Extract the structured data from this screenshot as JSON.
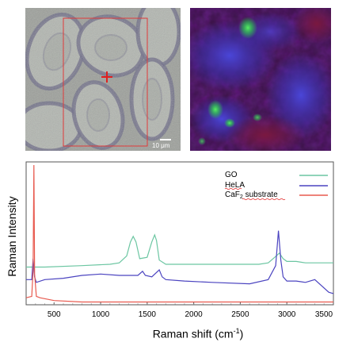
{
  "micrograph": {
    "scale_bar_label": "10 μm",
    "colors": {
      "background": "#9c9f9a",
      "roi": "#e03a3a",
      "crosshair": "#e02020"
    }
  },
  "raman_map": {
    "colors": {
      "background": "#3a1246",
      "go_signal": "#3dd35a",
      "cell_signal": "#4b3fb8"
    }
  },
  "chart_data": {
    "type": "line",
    "xlabel": "Raman shift (cm-1)",
    "ylabel": "Raman Intensity",
    "xlim": [
      200,
      3500
    ],
    "xticks": [
      "500",
      "1000",
      "1500",
      "2000",
      "2500",
      "3000",
      "3500"
    ],
    "legend_position": "top-right",
    "series": [
      {
        "name": "GO",
        "color": "#6cc6a2",
        "x": [
          200,
          400,
          800,
          1100,
          1200,
          1280,
          1320,
          1350,
          1380,
          1420,
          1500,
          1550,
          1580,
          1600,
          1630,
          1700,
          1800,
          2000,
          2400,
          2700,
          2800,
          2870,
          2920,
          2960,
          3000,
          3100,
          3200,
          3300,
          3500
        ],
        "y": [
          0.27,
          0.27,
          0.28,
          0.29,
          0.3,
          0.35,
          0.45,
          0.49,
          0.45,
          0.33,
          0.34,
          0.45,
          0.5,
          0.46,
          0.32,
          0.29,
          0.29,
          0.29,
          0.29,
          0.29,
          0.3,
          0.34,
          0.37,
          0.33,
          0.31,
          0.31,
          0.3,
          0.3,
          0.3
        ]
      },
      {
        "name": "HeLA",
        "color": "#4b44c0",
        "x": [
          200,
          260,
          275,
          290,
          310,
          400,
          600,
          800,
          1000,
          1200,
          1400,
          1450,
          1480,
          1550,
          1630,
          1660,
          1700,
          1900,
          2200,
          2600,
          2800,
          2880,
          2910,
          2935,
          2960,
          3000,
          3100,
          3200,
          3300,
          3450,
          3500
        ],
        "y": [
          0.18,
          0.18,
          0.33,
          0.2,
          0.16,
          0.18,
          0.19,
          0.21,
          0.22,
          0.21,
          0.21,
          0.24,
          0.21,
          0.2,
          0.25,
          0.2,
          0.18,
          0.17,
          0.16,
          0.15,
          0.18,
          0.28,
          0.53,
          0.32,
          0.2,
          0.17,
          0.17,
          0.16,
          0.18,
          0.09,
          0.08
        ]
      },
      {
        "name": "CaF2 substrate",
        "color": "#e85a4f",
        "x": [
          200,
          260,
          275,
          283,
          291,
          310,
          350,
          500,
          800,
          1500,
          2500,
          3500
        ],
        "y": [
          0.05,
          0.06,
          0.25,
          1.0,
          0.22,
          0.06,
          0.05,
          0.03,
          0.02,
          0.02,
          0.02,
          0.02
        ]
      }
    ]
  },
  "legend": {
    "go": "GO",
    "hela": "HeLA",
    "caf2_prefix": "CaF",
    "caf2_sub": "2",
    "caf2_suffix": " substrate"
  },
  "axis": {
    "xlabel_main": "Raman shift (cm",
    "xlabel_sup": "-1",
    "xlabel_end": ")",
    "ylabel": "Raman Intensity"
  }
}
